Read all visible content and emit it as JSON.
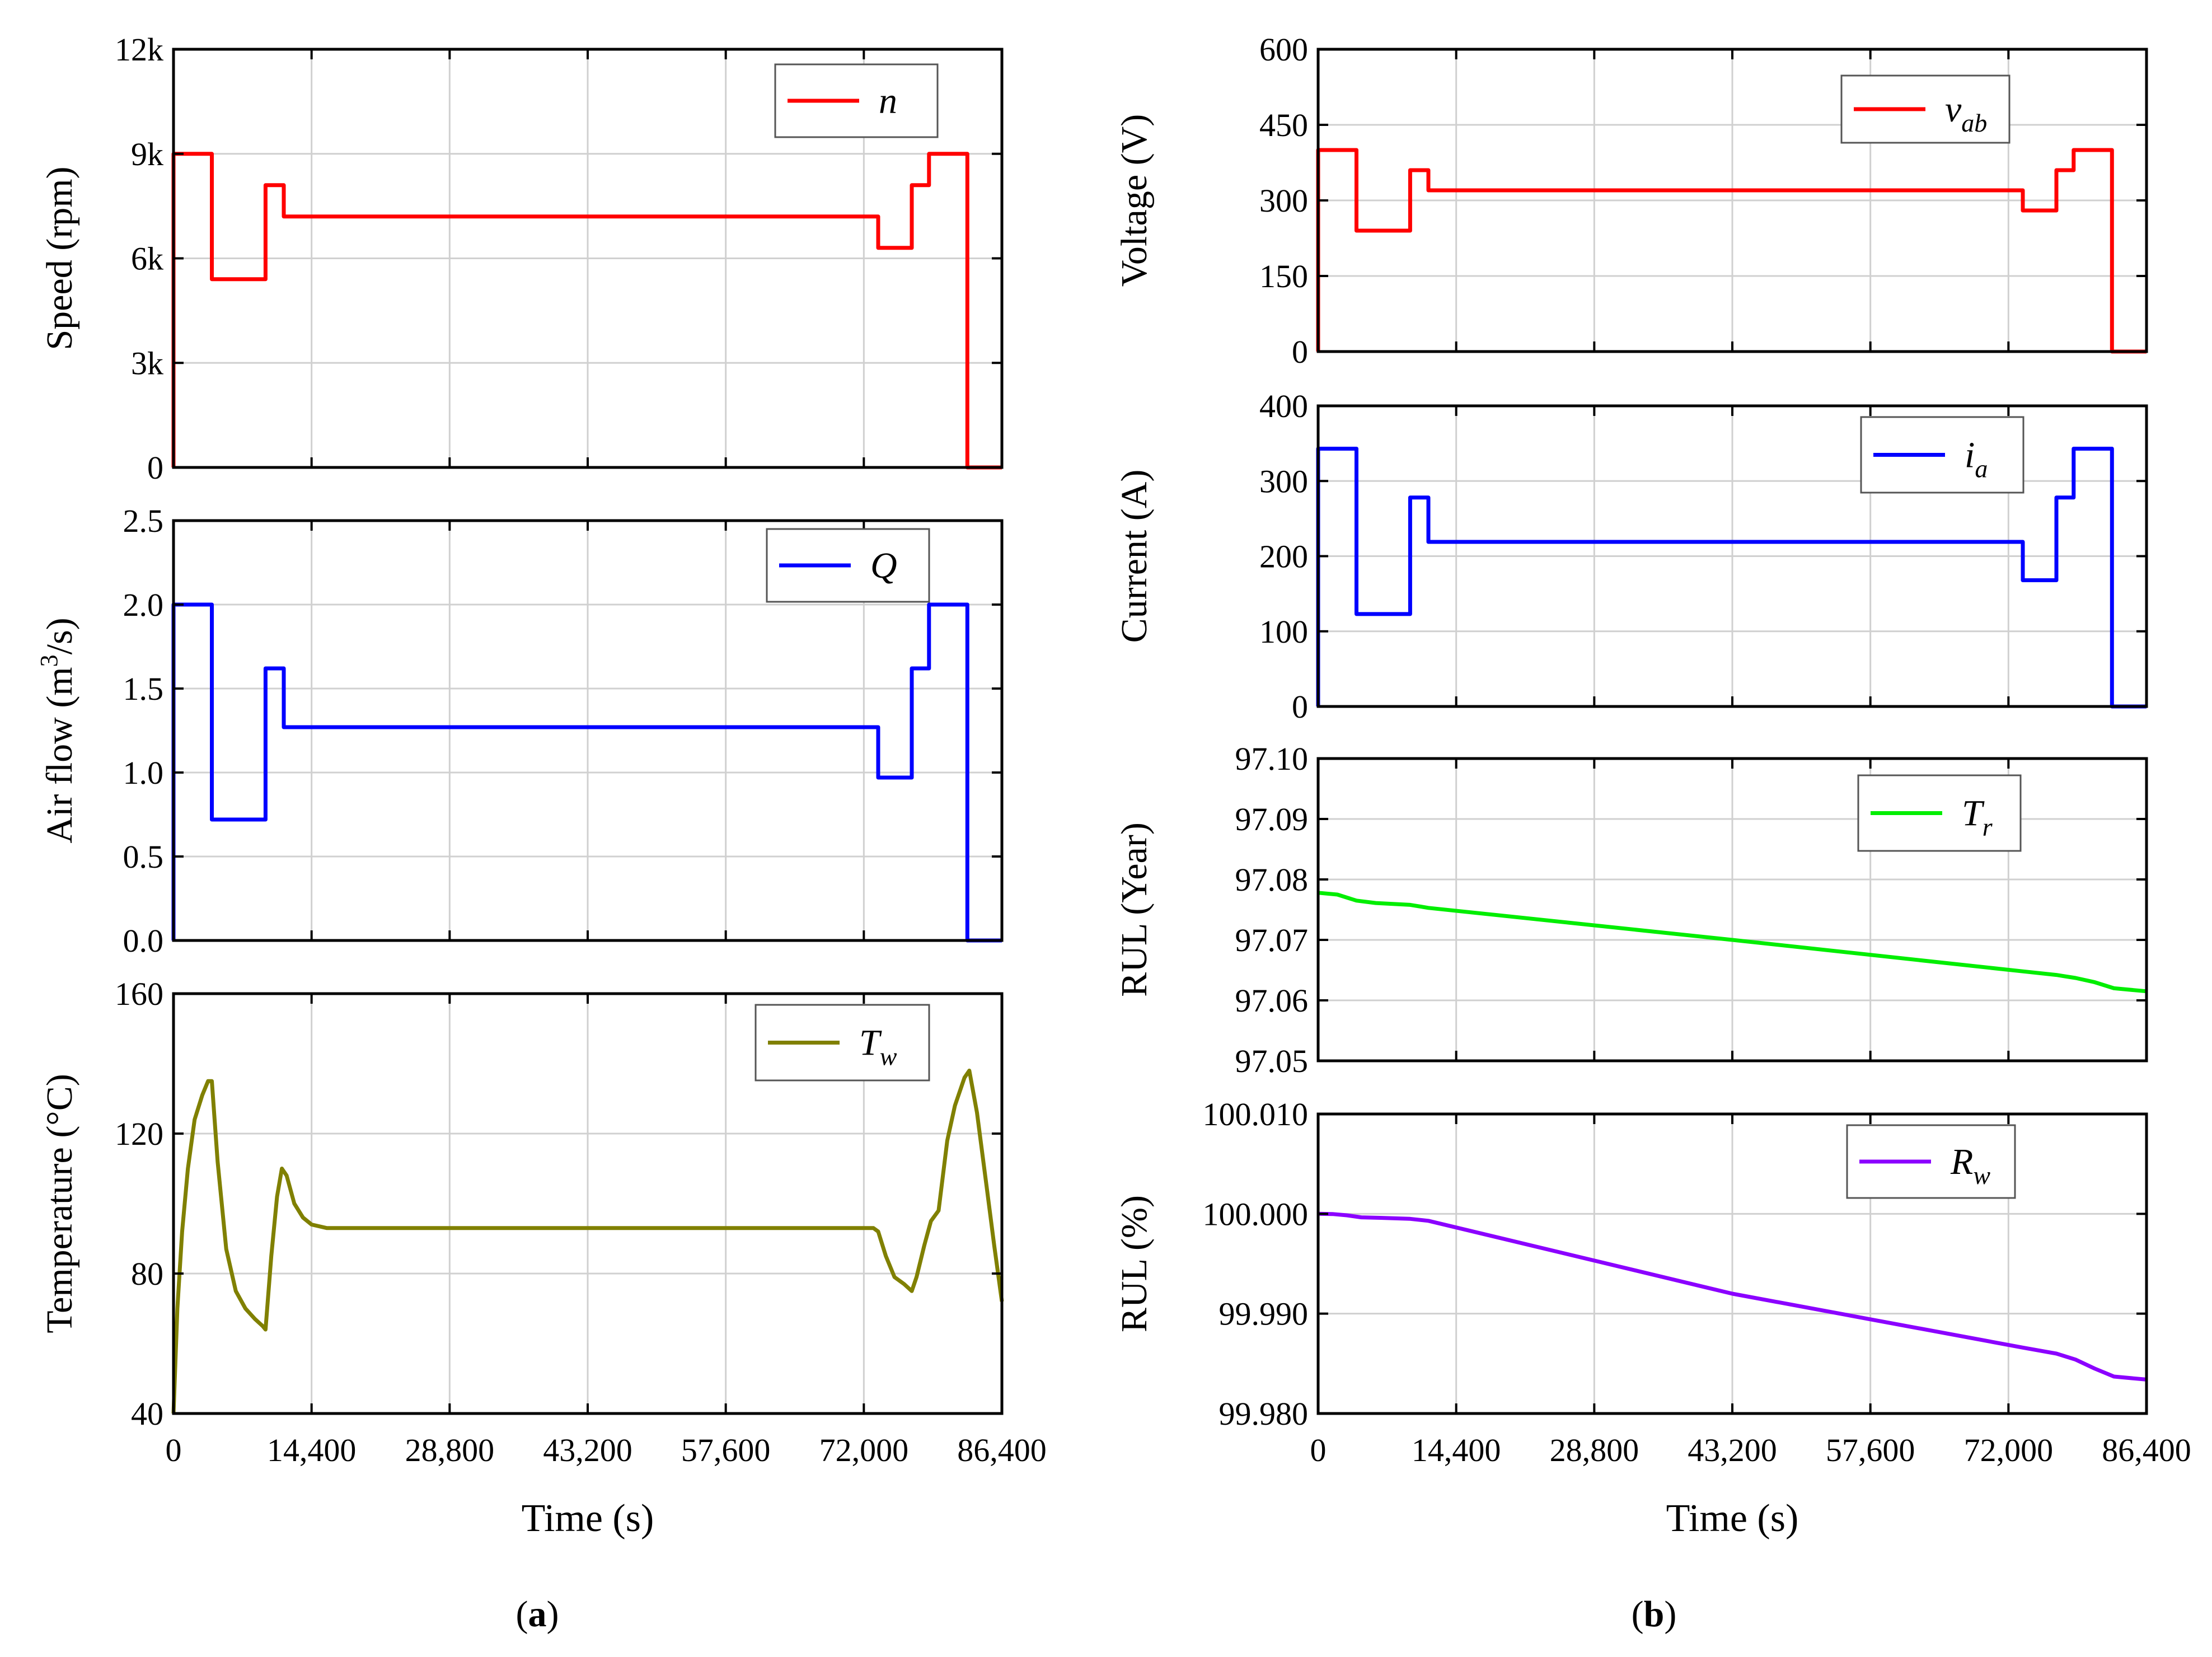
{
  "chart_data": [
    {
      "id": "speed",
      "type": "line",
      "panel": "a",
      "ylabel": "Speed (rpm)",
      "ylim": [
        0,
        12000
      ],
      "yticks": [
        0,
        3000,
        6000,
        9000,
        12000
      ],
      "ytick_labels": [
        "0",
        "3k",
        "6k",
        "9k",
        "12k"
      ],
      "xlim": [
        0,
        86400
      ],
      "xticks": [
        0,
        14400,
        28800,
        43200,
        57600,
        72000,
        86400
      ],
      "legend": "n",
      "legend_sub": "",
      "color": "#ff0000",
      "x": [
        0,
        0,
        4000,
        4000,
        9600,
        9600,
        11500,
        11500,
        73500,
        73500,
        77000,
        77000,
        78800,
        78800,
        82800,
        82800,
        86400
      ],
      "y": [
        0,
        9000,
        9000,
        5400,
        5400,
        8100,
        8100,
        7200,
        7200,
        6300,
        6300,
        8100,
        8100,
        9000,
        9000,
        0,
        0
      ]
    },
    {
      "id": "airflow",
      "type": "line",
      "panel": "a",
      "ylabel": "Air flow (m³/s)",
      "ylim": [
        0,
        2.5
      ],
      "yticks": [
        0,
        0.5,
        1.0,
        1.5,
        2.0,
        2.5
      ],
      "ytick_labels": [
        "0.0",
        "0.5",
        "1.0",
        "1.5",
        "2.0",
        "2.5"
      ],
      "xlim": [
        0,
        86400
      ],
      "xticks": [
        0,
        14400,
        28800,
        43200,
        57600,
        72000,
        86400
      ],
      "legend": "Q",
      "legend_sub": "",
      "color": "#0000ff",
      "x": [
        0,
        0,
        4000,
        4000,
        9600,
        9600,
        11500,
        11500,
        73500,
        73500,
        77000,
        77000,
        78800,
        78800,
        82800,
        82800,
        86400
      ],
      "y": [
        0,
        2.0,
        2.0,
        0.72,
        0.72,
        1.62,
        1.62,
        1.27,
        1.27,
        0.97,
        0.97,
        1.62,
        1.62,
        2.0,
        2.0,
        0,
        0
      ]
    },
    {
      "id": "temperature",
      "type": "line",
      "panel": "a",
      "ylabel": "Temperature (°C)",
      "ylim": [
        40,
        160
      ],
      "yticks": [
        40,
        80,
        120,
        160
      ],
      "ytick_labels": [
        "40",
        "80",
        "120",
        "160"
      ],
      "xlim": [
        0,
        86400
      ],
      "xticks": [
        0,
        14400,
        28800,
        43200,
        57600,
        72000,
        86400
      ],
      "xtick_labels": [
        "0",
        "14,400",
        "28,800",
        "43,200",
        "57,600",
        "72,000",
        "86,400"
      ],
      "xlabel": "Time (s)",
      "legend": "T",
      "legend_sub": "w",
      "color": "#808000",
      "x": [
        0,
        400,
        900,
        1500,
        2200,
        3000,
        3600,
        4000,
        4600,
        5500,
        6500,
        7500,
        8500,
        9300,
        9600,
        10200,
        10800,
        11300,
        11800,
        12600,
        13500,
        14400,
        16000,
        73000,
        73500,
        74300,
        75200,
        76200,
        77000,
        77500,
        78300,
        79000,
        79800,
        80700,
        81500,
        82500,
        83000,
        83800,
        84800,
        85600,
        86400
      ],
      "y": [
        40,
        70,
        92,
        110,
        124,
        131,
        135,
        135,
        112,
        87,
        75,
        70,
        67,
        65,
        64,
        85,
        102,
        110,
        108,
        100,
        96,
        94,
        93,
        93,
        92,
        85,
        79,
        77,
        75,
        79,
        88,
        95,
        98,
        118,
        128,
        136,
        138,
        126,
        105,
        88,
        72
      ]
    },
    {
      "id": "voltage",
      "type": "line",
      "panel": "b",
      "ylabel": "Voltage (V)",
      "ylim": [
        0,
        600
      ],
      "yticks": [
        0,
        150,
        300,
        450,
        600
      ],
      "ytick_labels": [
        "0",
        "150",
        "300",
        "450",
        "600"
      ],
      "xlim": [
        0,
        86400
      ],
      "xticks": [
        0,
        14400,
        28800,
        43200,
        57600,
        72000,
        86400
      ],
      "legend": "v",
      "legend_sub": "ab",
      "color": "#ff0000",
      "x": [
        0,
        0,
        4000,
        4000,
        9600,
        9600,
        11500,
        11500,
        73500,
        73500,
        77000,
        77000,
        78800,
        78800,
        82800,
        82800,
        86400
      ],
      "y": [
        0,
        400,
        400,
        240,
        240,
        360,
        360,
        320,
        320,
        280,
        280,
        360,
        360,
        400,
        400,
        0,
        0
      ]
    },
    {
      "id": "current",
      "type": "line",
      "panel": "b",
      "ylabel": "Current (A)",
      "ylim": [
        0,
        400
      ],
      "yticks": [
        0,
        100,
        200,
        300,
        400
      ],
      "ytick_labels": [
        "0",
        "100",
        "200",
        "300",
        "400"
      ],
      "xlim": [
        0,
        86400
      ],
      "xticks": [
        0,
        14400,
        28800,
        43200,
        57600,
        72000,
        86400
      ],
      "legend": "i",
      "legend_sub": "a",
      "color": "#0000ff",
      "x": [
        0,
        0,
        4000,
        4000,
        9600,
        9600,
        11500,
        11500,
        73500,
        73500,
        77000,
        77000,
        78800,
        78800,
        82800,
        82800,
        86400
      ],
      "y": [
        0,
        343,
        343,
        123,
        123,
        278,
        278,
        219,
        219,
        168,
        168,
        278,
        278,
        343,
        343,
        0,
        0
      ]
    },
    {
      "id": "rul_tr",
      "type": "line",
      "panel": "b",
      "ylabel": "RUL (Year)",
      "ylim": [
        97.05,
        97.1
      ],
      "yticks": [
        97.05,
        97.06,
        97.07,
        97.08,
        97.09,
        97.1
      ],
      "ytick_labels": [
        "97.05",
        "97.06",
        "97.07",
        "97.08",
        "97.09",
        "97.10"
      ],
      "xlim": [
        0,
        86400
      ],
      "xticks": [
        0,
        14400,
        28800,
        43200,
        57600,
        72000,
        86400
      ],
      "legend": "T",
      "legend_sub": "r",
      "color": "#00ee00",
      "x": [
        0,
        2000,
        4000,
        6000,
        9600,
        11500,
        43200,
        73500,
        77000,
        79000,
        81000,
        83000,
        86400
      ],
      "y": [
        97.0778,
        97.0775,
        97.0765,
        97.0761,
        97.0758,
        97.0753,
        97.07,
        97.0648,
        97.0642,
        97.0637,
        97.063,
        97.062,
        97.0615
      ]
    },
    {
      "id": "rul_rw",
      "type": "line",
      "panel": "b",
      "ylabel": "RUL (%)",
      "ylim": [
        99.98,
        100.01
      ],
      "yticks": [
        99.98,
        99.99,
        100.0,
        100.01
      ],
      "ytick_labels": [
        "99.980",
        "99.990",
        "100.000",
        "100.010"
      ],
      "xlim": [
        0,
        86400
      ],
      "xticks": [
        0,
        14400,
        28800,
        43200,
        57600,
        72000,
        86400
      ],
      "xtick_labels": [
        "0",
        "14,400",
        "28,800",
        "43,200",
        "57,600",
        "72,000",
        "86,400"
      ],
      "xlabel": "Time (s)",
      "legend": "R",
      "legend_sub": "w",
      "color": "#8b00ff",
      "x": [
        0,
        1500,
        3000,
        4500,
        6500,
        9600,
        11500,
        43200,
        73500,
        77000,
        79000,
        81000,
        83000,
        86400
      ],
      "y": [
        100.0,
        99.99998,
        99.99985,
        99.99965,
        99.9996,
        99.9995,
        99.9993,
        99.992,
        99.9866,
        99.986,
        99.9854,
        99.9845,
        99.9837,
        99.9834
      ]
    }
  ],
  "captions": {
    "a": "(a)",
    "b": "(b)"
  }
}
